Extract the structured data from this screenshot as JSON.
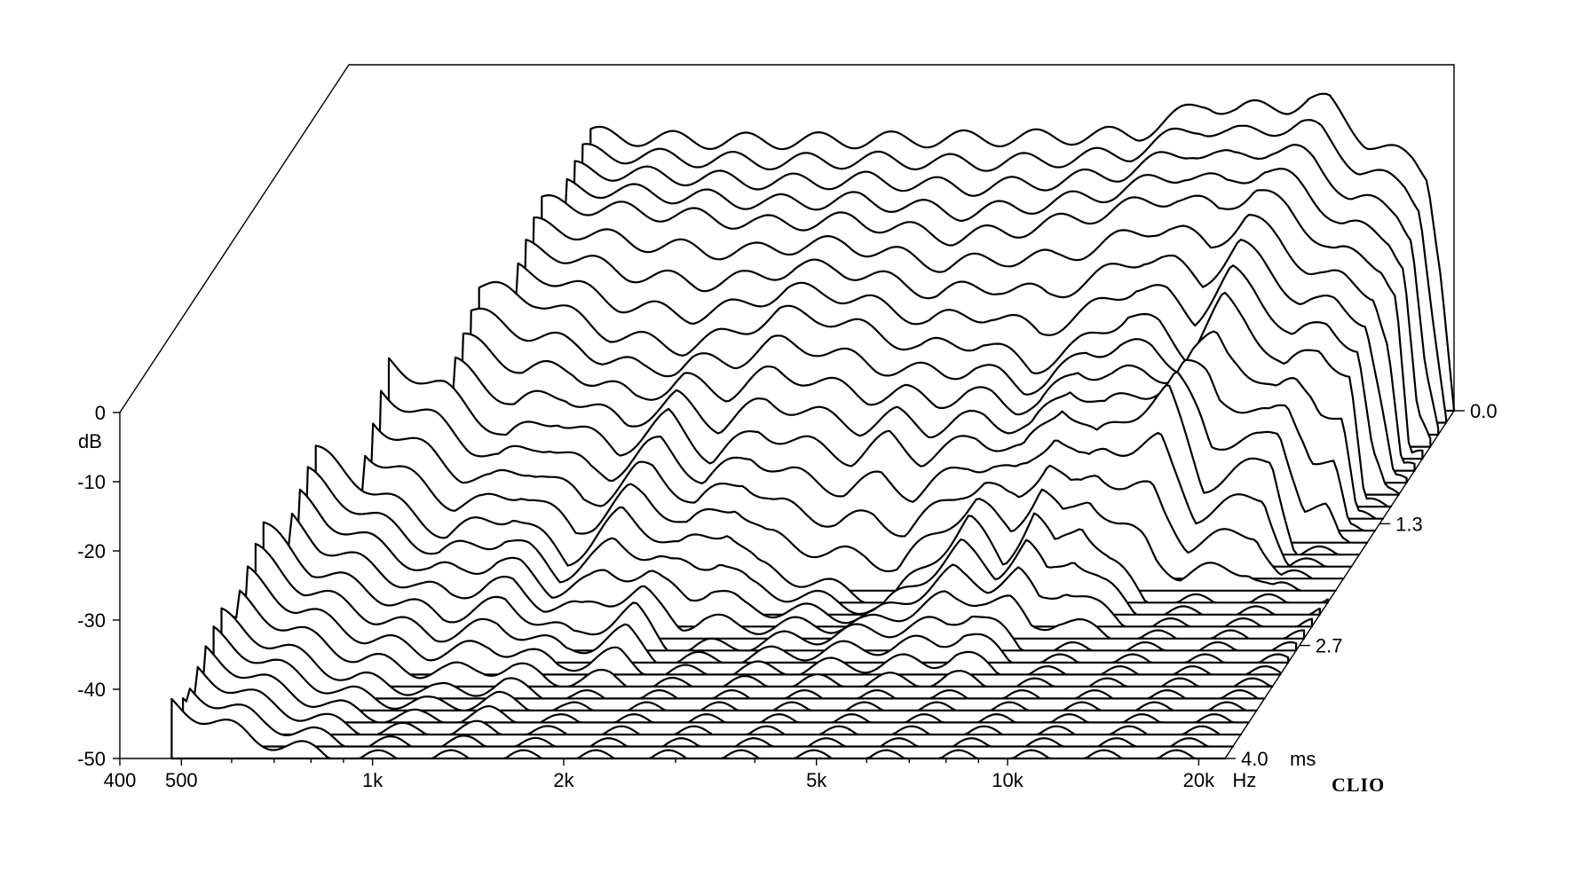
{
  "chart_data": {
    "type": "waterfall",
    "title": "",
    "xlabel": "",
    "ylabel": "dB",
    "zlabel": "",
    "x_unit": "Hz",
    "z_unit": "ms",
    "x_scale": "log",
    "xlim": [
      400,
      22000
    ],
    "ylim": [
      -50,
      0
    ],
    "zlim": [
      0.0,
      4.0
    ],
    "x_ticks": [
      {
        "value": 400,
        "label": "400"
      },
      {
        "value": 500,
        "label": "500"
      },
      {
        "value": 1000,
        "label": "1k"
      },
      {
        "value": 2000,
        "label": "2k"
      },
      {
        "value": 5000,
        "label": "5k"
      },
      {
        "value": 10000,
        "label": "10k"
      },
      {
        "value": 20000,
        "label": "20k"
      }
    ],
    "x_minor_ticks": [
      600,
      700,
      800,
      900,
      3000,
      4000,
      6000,
      7000,
      8000,
      9000
    ],
    "y_ticks": [
      {
        "value": 0,
        "label": "0"
      },
      {
        "value": -10,
        "label": "-10"
      },
      {
        "value": -20,
        "label": "-20"
      },
      {
        "value": -30,
        "label": "-30"
      },
      {
        "value": -40,
        "label": "-40"
      },
      {
        "value": -50,
        "label": "-50"
      }
    ],
    "z_ticks": [
      {
        "value": 0.0,
        "label": "0.0"
      },
      {
        "value": 1.3,
        "label": "1.3"
      },
      {
        "value": 2.7,
        "label": "2.7"
      },
      {
        "value": 4.0,
        "label": "4.0"
      }
    ],
    "slice_count": 30,
    "slice_step_ms": 0.138,
    "slices": [
      {
        "t_ms": 0.0,
        "points": [
          [
            950,
            -10
          ],
          [
            1100,
            -10.5
          ],
          [
            1500,
            -11
          ],
          [
            2000,
            -11
          ],
          [
            3000,
            -10.8
          ],
          [
            5000,
            -10.5
          ],
          [
            7000,
            -10
          ],
          [
            8500,
            -6.5
          ],
          [
            9000,
            -5.5
          ],
          [
            10000,
            -6.5
          ],
          [
            12000,
            -6
          ],
          [
            13000,
            -5
          ],
          [
            14000,
            -5.5
          ],
          [
            16000,
            -11
          ],
          [
            18000,
            -13
          ],
          [
            19000,
            -14
          ],
          [
            20000,
            -16
          ],
          [
            21000,
            -30
          ],
          [
            22000,
            -50
          ]
        ]
      },
      {
        "t_ms": 0.55,
        "points": [
          [
            900,
            -13
          ],
          [
            1200,
            -14
          ],
          [
            1600,
            -15
          ],
          [
            2000,
            -16
          ],
          [
            2800,
            -15.5
          ],
          [
            4000,
            -18
          ],
          [
            5000,
            -17
          ],
          [
            6500,
            -15
          ],
          [
            8000,
            -13
          ],
          [
            9000,
            -12
          ],
          [
            10500,
            -14
          ],
          [
            12000,
            -11
          ],
          [
            13500,
            -14
          ],
          [
            16000,
            -20
          ],
          [
            19000,
            -22
          ],
          [
            20000,
            -26
          ],
          [
            21000,
            -50
          ]
        ]
      },
      {
        "t_ms": 1.1,
        "points": [
          [
            800,
            -18
          ],
          [
            1000,
            -20
          ],
          [
            1300,
            -25
          ],
          [
            1700,
            -27
          ],
          [
            2000,
            -25
          ],
          [
            2400,
            -22
          ],
          [
            2800,
            -22.5
          ],
          [
            3200,
            -24
          ],
          [
            4000,
            -27
          ],
          [
            5000,
            -26
          ],
          [
            6000,
            -30
          ],
          [
            7000,
            -27
          ],
          [
            8500,
            -22
          ],
          [
            9500,
            -24
          ],
          [
            10500,
            -28
          ],
          [
            12000,
            -20
          ],
          [
            13000,
            -23
          ],
          [
            15000,
            -30
          ],
          [
            17000,
            -27
          ],
          [
            19000,
            -31
          ],
          [
            20000,
            -50
          ]
        ]
      },
      {
        "t_ms": 1.65,
        "points": [
          [
            650,
            -22
          ],
          [
            800,
            -26
          ],
          [
            1000,
            -33
          ],
          [
            1200,
            -30
          ],
          [
            1500,
            -35
          ],
          [
            1800,
            -30
          ],
          [
            2100,
            -36
          ],
          [
            2500,
            -32
          ],
          [
            3000,
            -34
          ],
          [
            3500,
            -36
          ],
          [
            4000,
            -33
          ],
          [
            4500,
            -36
          ],
          [
            5500,
            -33
          ],
          [
            6500,
            -35
          ],
          [
            7500,
            -28
          ],
          [
            8500,
            -33
          ],
          [
            9500,
            -30
          ],
          [
            11000,
            -26
          ],
          [
            12500,
            -40
          ],
          [
            14000,
            -38
          ],
          [
            16000,
            -36
          ],
          [
            17500,
            -50
          ]
        ]
      },
      {
        "t_ms": 2.2,
        "points": [
          [
            560,
            -28
          ],
          [
            700,
            -34
          ],
          [
            900,
            -40
          ],
          [
            1150,
            -37
          ],
          [
            1400,
            -44
          ],
          [
            1700,
            -37
          ],
          [
            2100,
            -42
          ],
          [
            2500,
            -39
          ],
          [
            2800,
            -45
          ],
          [
            4500,
            -50
          ],
          [
            6000,
            -38
          ],
          [
            6800,
            -44
          ],
          [
            7600,
            -37
          ],
          [
            8200,
            -42
          ],
          [
            9000,
            -38
          ],
          [
            10000,
            -44
          ],
          [
            11500,
            -50
          ]
        ]
      },
      {
        "t_ms": 2.75,
        "points": [
          [
            520,
            -32
          ],
          [
            620,
            -38
          ],
          [
            800,
            -42
          ],
          [
            1000,
            -45
          ],
          [
            1250,
            -43
          ],
          [
            1600,
            -48
          ],
          [
            2000,
            -44
          ],
          [
            2300,
            -50
          ],
          [
            6200,
            -46
          ],
          [
            6800,
            -44
          ],
          [
            7500,
            -47
          ],
          [
            8200,
            -50
          ]
        ]
      },
      {
        "t_ms": 3.3,
        "points": [
          [
            500,
            -38
          ],
          [
            600,
            -42
          ],
          [
            800,
            -47
          ],
          [
            1100,
            -49
          ],
          [
            1400,
            -48
          ],
          [
            1800,
            -50
          ]
        ]
      },
      {
        "t_ms": 4.0,
        "points": [
          [
            480,
            -42
          ],
          [
            650,
            -47
          ],
          [
            900,
            -50
          ]
        ]
      }
    ]
  },
  "footer": {
    "brand": "CLIO"
  }
}
